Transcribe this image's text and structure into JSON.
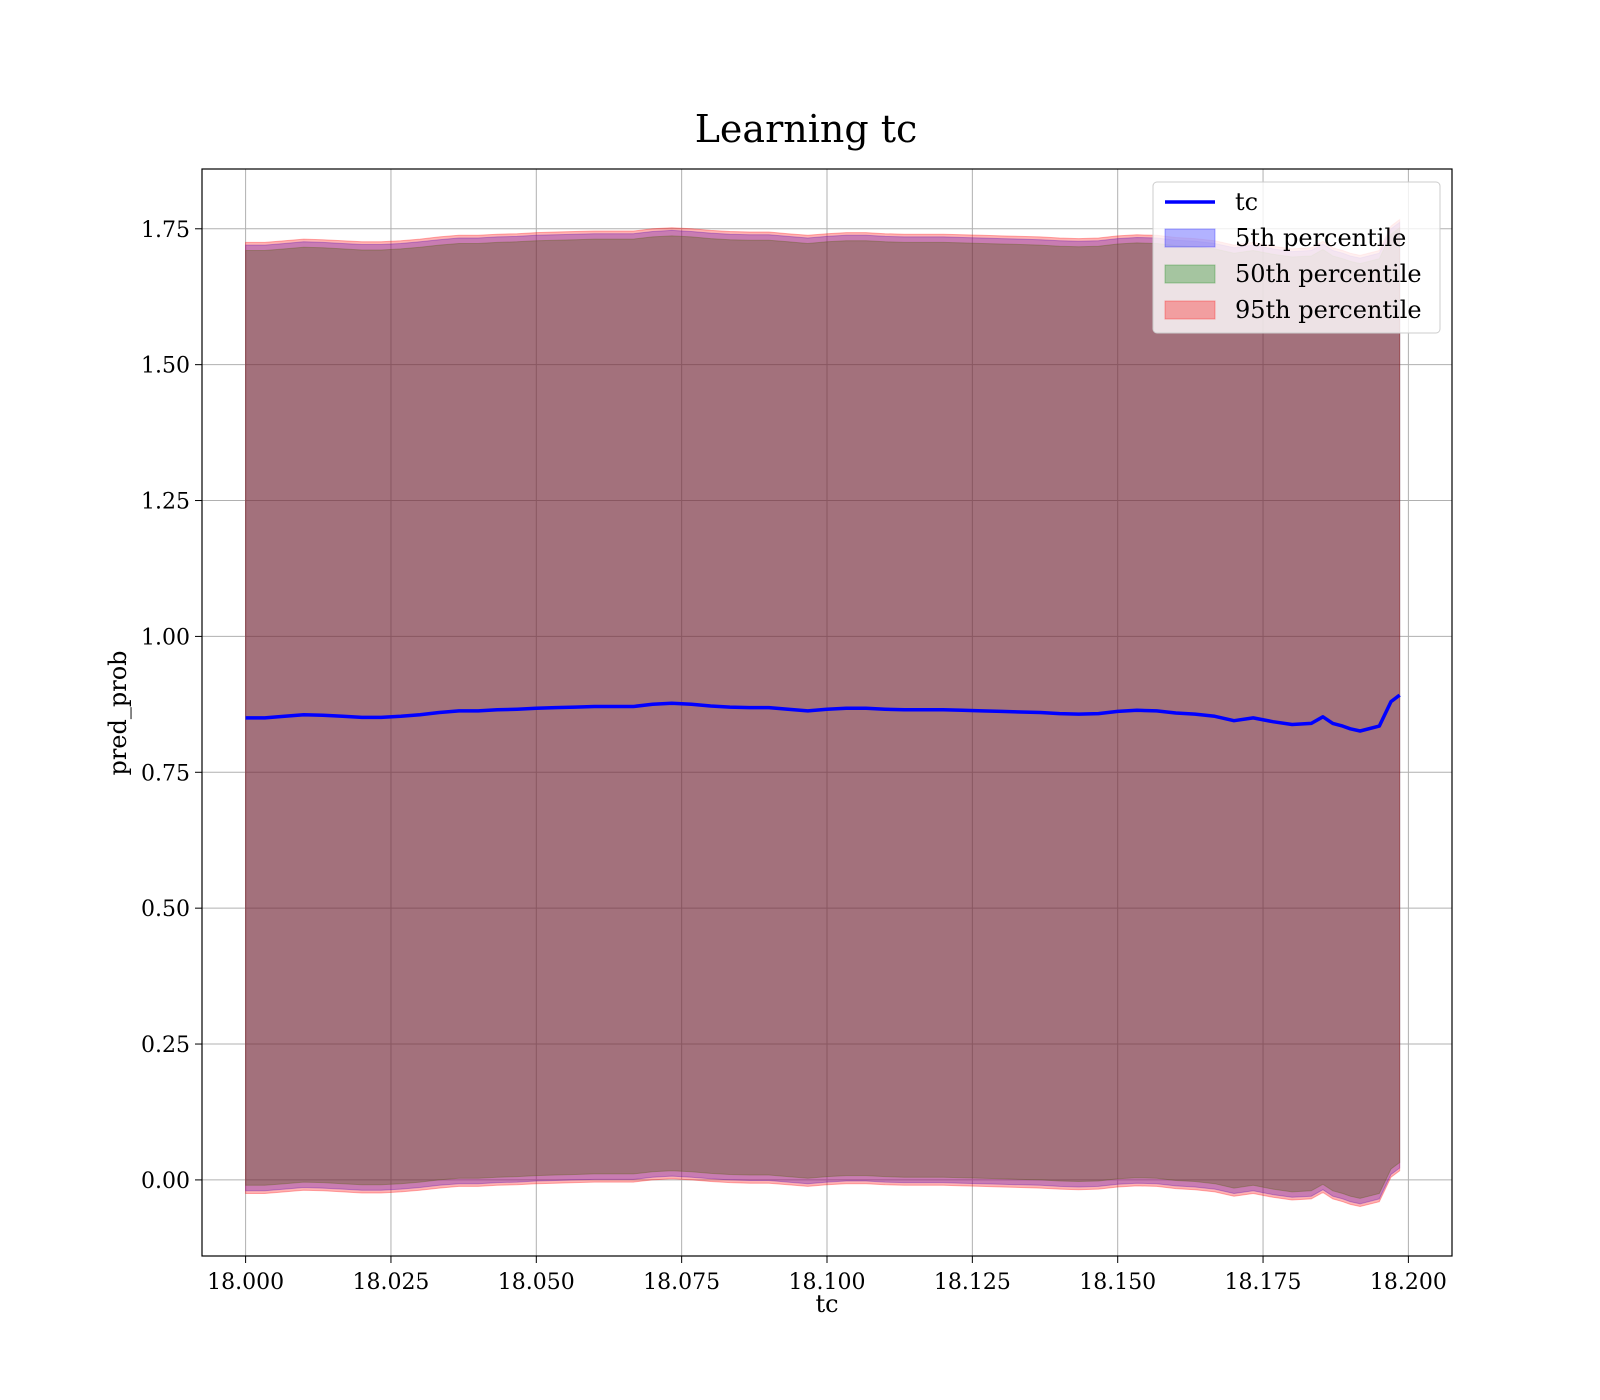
{
  "chart_data": {
    "type": "area",
    "title": "Learning tc",
    "xlabel": "tc",
    "ylabel": "pred_prob",
    "xlim": [
      17.9925,
      18.2075
    ],
    "ylim": [
      -0.14,
      1.86
    ],
    "xticks": [
      18.0,
      18.025,
      18.05,
      18.075,
      18.1,
      18.125,
      18.15,
      18.175,
      18.2
    ],
    "xtick_labels": [
      "18.000",
      "18.025",
      "18.050",
      "18.075",
      "18.100",
      "18.125",
      "18.150",
      "18.175",
      "18.200"
    ],
    "yticks": [
      0.0,
      0.25,
      0.5,
      0.75,
      1.0,
      1.25,
      1.5,
      1.75
    ],
    "ytick_labels": [
      "0.00",
      "0.25",
      "0.50",
      "0.75",
      "1.00",
      "1.25",
      "1.50",
      "1.75"
    ],
    "grid": true,
    "legend_position": "upper-right",
    "x": [
      18.0,
      18.0033,
      18.0067,
      18.01,
      18.0133,
      18.0167,
      18.02,
      18.0233,
      18.0267,
      18.03,
      18.0333,
      18.0367,
      18.04,
      18.0433,
      18.0467,
      18.05,
      18.0533,
      18.0567,
      18.06,
      18.0633,
      18.0667,
      18.07,
      18.0733,
      18.0767,
      18.08,
      18.0833,
      18.0867,
      18.09,
      18.0933,
      18.0967,
      18.1,
      18.1033,
      18.1067,
      18.11,
      18.1133,
      18.1167,
      18.12,
      18.1233,
      18.1267,
      18.13,
      18.1333,
      18.1367,
      18.14,
      18.1433,
      18.1467,
      18.15,
      18.1533,
      18.1567,
      18.16,
      18.1633,
      18.1667,
      18.17,
      18.1733,
      18.1767,
      18.18,
      18.1833,
      18.1853,
      18.187,
      18.1887,
      18.19,
      18.1917,
      18.195,
      18.197,
      18.1985
    ],
    "series": [
      {
        "name": "tc",
        "kind": "line",
        "color": "#0000ff",
        "values": [
          0.85,
          0.85,
          0.853,
          0.856,
          0.855,
          0.853,
          0.851,
          0.851,
          0.853,
          0.856,
          0.86,
          0.863,
          0.863,
          0.865,
          0.866,
          0.868,
          0.869,
          0.87,
          0.871,
          0.871,
          0.871,
          0.875,
          0.877,
          0.875,
          0.872,
          0.87,
          0.869,
          0.869,
          0.866,
          0.863,
          0.866,
          0.868,
          0.868,
          0.866,
          0.865,
          0.865,
          0.865,
          0.864,
          0.863,
          0.862,
          0.861,
          0.86,
          0.858,
          0.857,
          0.858,
          0.862,
          0.864,
          0.863,
          0.859,
          0.857,
          0.853,
          0.845,
          0.85,
          0.843,
          0.838,
          0.84,
          0.852,
          0.84,
          0.835,
          0.83,
          0.826,
          0.835,
          0.88,
          0.892
        ]
      },
      {
        "name": "5th percentile",
        "kind": "band",
        "color": "#0000ff",
        "lower": [
          -0.02,
          -0.02,
          -0.017,
          -0.014,
          -0.015,
          -0.017,
          -0.019,
          -0.019,
          -0.017,
          -0.014,
          -0.01,
          -0.007,
          -0.007,
          -0.005,
          -0.004,
          -0.002,
          -0.001,
          0.0,
          0.001,
          0.001,
          0.001,
          0.005,
          0.007,
          0.005,
          0.002,
          0.0,
          -0.001,
          -0.001,
          -0.004,
          -0.007,
          -0.004,
          -0.002,
          -0.002,
          -0.004,
          -0.005,
          -0.005,
          -0.005,
          -0.006,
          -0.007,
          -0.008,
          -0.009,
          -0.01,
          -0.012,
          -0.013,
          -0.012,
          -0.008,
          -0.006,
          -0.007,
          -0.011,
          -0.013,
          -0.017,
          -0.025,
          -0.02,
          -0.027,
          -0.032,
          -0.03,
          -0.018,
          -0.03,
          -0.035,
          -0.04,
          -0.044,
          -0.035,
          0.01,
          0.022
        ],
        "upper": [
          1.72,
          1.72,
          1.723,
          1.726,
          1.725,
          1.723,
          1.721,
          1.721,
          1.723,
          1.726,
          1.73,
          1.733,
          1.733,
          1.735,
          1.736,
          1.738,
          1.739,
          1.74,
          1.741,
          1.741,
          1.741,
          1.745,
          1.747,
          1.745,
          1.742,
          1.74,
          1.739,
          1.739,
          1.736,
          1.733,
          1.736,
          1.738,
          1.738,
          1.736,
          1.735,
          1.735,
          1.735,
          1.734,
          1.733,
          1.732,
          1.731,
          1.73,
          1.728,
          1.727,
          1.728,
          1.732,
          1.734,
          1.733,
          1.729,
          1.727,
          1.723,
          1.715,
          1.72,
          1.713,
          1.708,
          1.71,
          1.722,
          1.71,
          1.705,
          1.7,
          1.696,
          1.705,
          1.75,
          1.762
        ]
      },
      {
        "name": "50th percentile",
        "kind": "band",
        "color": "#008000",
        "lower": [
          -0.01,
          -0.01,
          -0.007,
          -0.004,
          -0.005,
          -0.007,
          -0.009,
          -0.009,
          -0.007,
          -0.004,
          0.0,
          0.003,
          0.003,
          0.005,
          0.006,
          0.008,
          0.009,
          0.01,
          0.011,
          0.011,
          0.011,
          0.015,
          0.017,
          0.015,
          0.012,
          0.01,
          0.009,
          0.009,
          0.006,
          0.003,
          0.006,
          0.008,
          0.008,
          0.006,
          0.005,
          0.005,
          0.005,
          0.004,
          0.003,
          0.002,
          0.001,
          0.0,
          -0.002,
          -0.003,
          -0.002,
          0.002,
          0.004,
          0.003,
          -0.001,
          -0.003,
          -0.007,
          -0.015,
          -0.01,
          -0.017,
          -0.022,
          -0.02,
          -0.008,
          -0.02,
          -0.025,
          -0.03,
          -0.034,
          -0.025,
          0.02,
          0.032
        ],
        "upper": [
          1.71,
          1.71,
          1.713,
          1.716,
          1.715,
          1.713,
          1.711,
          1.711,
          1.713,
          1.716,
          1.72,
          1.723,
          1.723,
          1.725,
          1.726,
          1.728,
          1.729,
          1.73,
          1.731,
          1.731,
          1.731,
          1.735,
          1.737,
          1.735,
          1.732,
          1.73,
          1.729,
          1.729,
          1.726,
          1.723,
          1.726,
          1.728,
          1.728,
          1.726,
          1.725,
          1.725,
          1.725,
          1.724,
          1.723,
          1.722,
          1.721,
          1.72,
          1.718,
          1.717,
          1.718,
          1.722,
          1.724,
          1.723,
          1.719,
          1.717,
          1.713,
          1.705,
          1.71,
          1.703,
          1.698,
          1.7,
          1.712,
          1.7,
          1.695,
          1.69,
          1.686,
          1.695,
          1.74,
          1.752
        ]
      },
      {
        "name": "95th percentile",
        "kind": "band",
        "color": "#ff0000",
        "lower": [
          -0.025,
          -0.025,
          -0.022,
          -0.019,
          -0.02,
          -0.022,
          -0.024,
          -0.024,
          -0.022,
          -0.019,
          -0.015,
          -0.012,
          -0.012,
          -0.01,
          -0.009,
          -0.007,
          -0.006,
          -0.005,
          -0.004,
          -0.004,
          -0.004,
          0.0,
          0.002,
          0.0,
          -0.003,
          -0.005,
          -0.006,
          -0.006,
          -0.009,
          -0.012,
          -0.009,
          -0.007,
          -0.007,
          -0.009,
          -0.01,
          -0.01,
          -0.01,
          -0.011,
          -0.012,
          -0.013,
          -0.014,
          -0.015,
          -0.017,
          -0.018,
          -0.017,
          -0.013,
          -0.011,
          -0.012,
          -0.016,
          -0.018,
          -0.022,
          -0.03,
          -0.025,
          -0.032,
          -0.037,
          -0.035,
          -0.023,
          -0.035,
          -0.04,
          -0.045,
          -0.049,
          -0.04,
          0.005,
          0.017
        ],
        "upper": [
          1.725,
          1.725,
          1.728,
          1.731,
          1.73,
          1.728,
          1.726,
          1.726,
          1.728,
          1.731,
          1.735,
          1.738,
          1.738,
          1.74,
          1.741,
          1.743,
          1.744,
          1.745,
          1.746,
          1.746,
          1.746,
          1.75,
          1.752,
          1.75,
          1.747,
          1.745,
          1.744,
          1.744,
          1.741,
          1.738,
          1.741,
          1.743,
          1.743,
          1.741,
          1.74,
          1.74,
          1.74,
          1.739,
          1.738,
          1.737,
          1.736,
          1.735,
          1.733,
          1.732,
          1.733,
          1.737,
          1.739,
          1.738,
          1.734,
          1.732,
          1.728,
          1.72,
          1.725,
          1.718,
          1.713,
          1.715,
          1.727,
          1.715,
          1.71,
          1.705,
          1.701,
          1.71,
          1.755,
          1.767
        ]
      }
    ]
  }
}
